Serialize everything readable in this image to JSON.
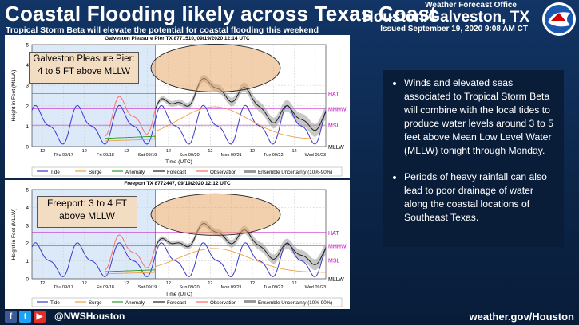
{
  "header": {
    "title": "Coastal Flooding likely across Texas Coast",
    "subtitle": "Tropical Storm Beta will elevate the potential for coastal flooding this weekend",
    "office_label": "Weather Forecast Office",
    "office_city": "Houston/Galveston, TX",
    "issued": "Issued September 19, 2020 9:08 AM CT"
  },
  "chart_data": [
    {
      "type": "line",
      "title": "Galveston Pleasure Pier TX 8771510, 09/19/2020 12:14 UTC",
      "ylabel": "Height in Feet (MLLW)",
      "xlabel": "Time (UTC)",
      "ylim": [
        0,
        5
      ],
      "y_ticks": [
        "0",
        "1",
        "2",
        "3",
        "4",
        "5"
      ],
      "x_ticks": [
        "12",
        "Thu 09/17",
        "12",
        "Fri 09/18",
        "12",
        "Sat 09/19",
        "12",
        "Sun 09/20",
        "12",
        "Mon 09/21",
        "12",
        "Tue 09/22",
        "12",
        "Wed 09/23"
      ],
      "levels": [
        {
          "name": "HAT",
          "value": 2.6
        },
        {
          "name": "MHHW",
          "value": 1.85
        },
        {
          "name": "MSL",
          "value": 1.05
        },
        {
          "name": "MLLW",
          "value": 0
        }
      ],
      "legend": [
        "Tide",
        "Surge",
        "Anomaly",
        "Forecast",
        "Observation",
        "Ensemble Uncertainty (10%-90%)"
      ],
      "callout": "Galveston Pleasure Pier: 4 to 5 FT above MLLW"
    },
    {
      "type": "line",
      "title": "Freeport TX 8772447, 09/19/2020 12:12 UTC",
      "ylabel": "Height in Feet (MLLW)",
      "xlabel": "Time (UTC)",
      "ylim": [
        0,
        5
      ],
      "y_ticks": [
        "0",
        "1",
        "2",
        "3",
        "4",
        "5"
      ],
      "x_ticks": [
        "12",
        "Thu 09/17",
        "12",
        "Fri 09/18",
        "12",
        "Sat 09/19",
        "12",
        "Sun 09/20",
        "12",
        "Mon 09/21",
        "12",
        "Tue 09/22",
        "12",
        "Wed 09/23"
      ],
      "levels": [
        {
          "name": "HAT",
          "value": 2.6
        },
        {
          "name": "MHHW",
          "value": 1.85
        },
        {
          "name": "MSL",
          "value": 1.05
        },
        {
          "name": "MLLW",
          "value": 0
        }
      ],
      "legend": [
        "Tide",
        "Surge",
        "Anomaly",
        "Forecast",
        "Observation",
        "Ensemble Uncertainty (10%-90%)"
      ],
      "callout": "Freeport: 3 to 4 FT above MLLW"
    }
  ],
  "bullets": [
    "Winds and elevated seas associated to Tropical Storm Beta will combine with the local tides to produce water levels around 3 to 5 feet above Mean Low Level Water (MLLW) tonight through Monday.",
    "Periods of heavy rainfall can also lead to poor drainage of water along the coastal locations of Southeast Texas."
  ],
  "footer": {
    "handle": "@NWSHouston",
    "site": "weather.gov/Houston"
  },
  "colors": {
    "tide": "#3a3acc",
    "surge": "#f0a040",
    "anomaly": "#2e9a2e",
    "forecast": "#222222",
    "observation": "#ff6666",
    "datum": "#c000c0",
    "ensemble": "#9a9a9a",
    "callout": "#f3ddc2"
  },
  "icons": [
    "facebook-icon",
    "twitter-icon",
    "youtube-icon",
    "noaa-nws-logo"
  ]
}
